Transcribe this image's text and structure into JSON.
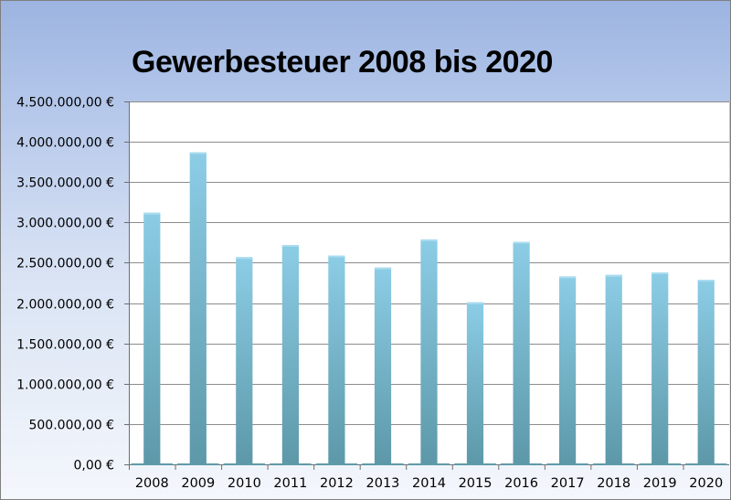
{
  "chart_data": {
    "type": "bar",
    "title": "Gewerbesteuer 2008 bis 2020",
    "xlabel": "",
    "ylabel": "",
    "categories": [
      "2008",
      "2009",
      "2010",
      "2011",
      "2012",
      "2013",
      "2014",
      "2015",
      "2016",
      "2017",
      "2018",
      "2019",
      "2020"
    ],
    "values": [
      3120000,
      3870000,
      2570000,
      2720000,
      2590000,
      2440000,
      2790000,
      2010000,
      2760000,
      2330000,
      2350000,
      2380000,
      2290000
    ],
    "ylim": [
      0,
      4500000
    ],
    "yticks": [
      0,
      500000,
      1000000,
      1500000,
      2000000,
      2500000,
      3000000,
      3500000,
      4000000,
      4500000
    ],
    "ytick_labels": [
      "0,00 €",
      "500.000,00 €",
      "1.000.000,00 €",
      "1.500.000,00 €",
      "2.000.000,00 €",
      "2.500.000,00 €",
      "3.000.000,00 €",
      "3.500.000,00 €",
      "4.000.000,00 €",
      "4.500.000,00 €"
    ],
    "grid": true,
    "legend": "none",
    "colors": {
      "bar_top": "#8ccde6",
      "bar_bottom": "#5c98a8",
      "grid": "#8c8c8c",
      "plot_bg": "#ffffff"
    }
  }
}
